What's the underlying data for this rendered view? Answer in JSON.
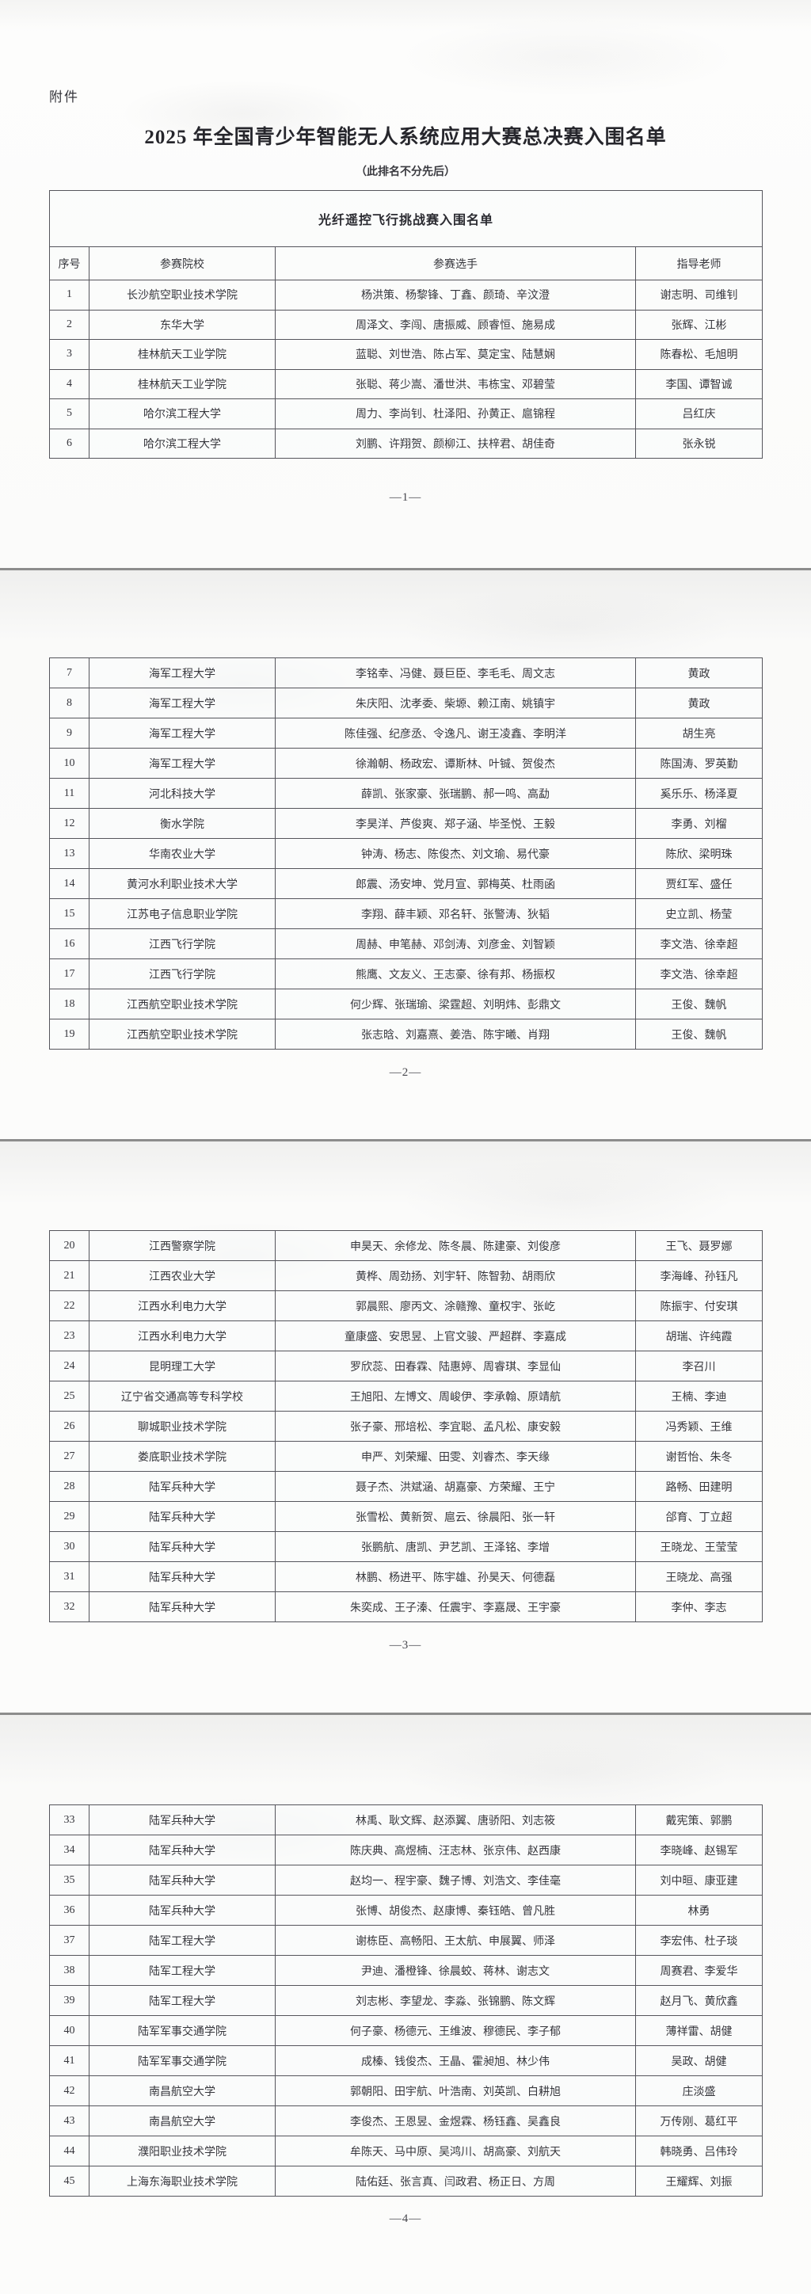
{
  "document": {
    "attachment_label": "附件",
    "title": "2025 年全国青少年智能无人系统应用大赛总决赛入围名单",
    "subtitle": "（此排名不分先后）",
    "table_title": "光纤遥控飞行挑战赛入围名单",
    "columns": [
      "序号",
      "参赛院校",
      "参赛选手",
      "指导老师"
    ],
    "colors": {
      "text": "#36363c",
      "border": "#55555c",
      "page_bg": "#fcfcfb",
      "separator": "#8c8c8c"
    },
    "pages": [
      {
        "page_number": "—1—",
        "rows": [
          [
            "1",
            "长沙航空职业技术学院",
            "杨洪策、杨黎锋、丁鑫、颜琦、辛汶澄",
            "谢志明、司维钊"
          ],
          [
            "2",
            "东华大学",
            "周泽文、李闯、唐振威、顾睿恒、施易成",
            "张辉、江彬"
          ],
          [
            "3",
            "桂林航天工业学院",
            "蓝聪、刘世浩、陈占军、莫定宝、陆慧娴",
            "陈春松、毛旭明"
          ],
          [
            "4",
            "桂林航天工业学院",
            "张聪、蒋少嵩、潘世洪、韦栋宝、邓碧莹",
            "李国、谭智诚"
          ],
          [
            "5",
            "哈尔滨工程大学",
            "周力、李尚钊、杜泽阳、孙黄正、扈锦程",
            "吕红庆"
          ],
          [
            "6",
            "哈尔滨工程大学",
            "刘鹏、许翔贺、颜柳江、扶梓君、胡佳奇",
            "张永锐"
          ]
        ]
      },
      {
        "page_number": "—2—",
        "rows": [
          [
            "7",
            "海军工程大学",
            "李铭幸、冯健、聂巨臣、李毛毛、周文志",
            "黄政"
          ],
          [
            "8",
            "海军工程大学",
            "朱庆阳、沈孝委、柴塬、赖江南、姚镇宇",
            "黄政"
          ],
          [
            "9",
            "海军工程大学",
            "陈佳强、纪彦丞、令逸凡、谢王凌鑫、李明洋",
            "胡生亮"
          ],
          [
            "10",
            "海军工程大学",
            "徐瀚朝、杨政宏、谭斯林、叶铖、贺俊杰",
            "陈国涛、罗英勤"
          ],
          [
            "11",
            "河北科技大学",
            "薛凯、张家豪、张瑞鹏、郝一鸣、高勐",
            "奚乐乐、杨泽夏"
          ],
          [
            "12",
            "衡水学院",
            "李昊洋、芦俊爽、郑子涵、毕圣悦、王毅",
            "李勇、刘榴"
          ],
          [
            "13",
            "华南农业大学",
            "钟涛、杨志、陈俊杰、刘文瑜、易代豪",
            "陈欣、梁明珠"
          ],
          [
            "14",
            "黄河水利职业技术大学",
            "郎震、汤安坤、党月宣、郭梅英、杜雨函",
            "贾红军、盛任"
          ],
          [
            "15",
            "江苏电子信息职业学院",
            "李翔、薛丰颖、邓名轩、张警涛、狄韬",
            "史立凯、杨莹"
          ],
          [
            "16",
            "江西飞行学院",
            "周赫、申笔赫、邓剑涛、刘彦金、刘智颖",
            "李文浩、徐幸超"
          ],
          [
            "17",
            "江西飞行学院",
            "熊鹰、文友义、王志豪、徐有邦、杨振权",
            "李文浩、徐幸超"
          ],
          [
            "18",
            "江西航空职业技术学院",
            "何少辉、张瑞瑜、梁霆超、刘明炜、彭鼎文",
            "王俊、魏帆"
          ],
          [
            "19",
            "江西航空职业技术学院",
            "张志晗、刘嘉熹、姜浩、陈宇曦、肖翔",
            "王俊、魏帆"
          ]
        ]
      },
      {
        "page_number": "—3—",
        "rows": [
          [
            "20",
            "江西警察学院",
            "申昊天、余修龙、陈冬晨、陈建豪、刘俊彦",
            "王飞、聂罗娜"
          ],
          [
            "21",
            "江西农业大学",
            "黄桦、周劲扬、刘宇轩、陈智勃、胡雨欣",
            "李海峰、孙钰凡"
          ],
          [
            "22",
            "江西水利电力大学",
            "郭晨熙、廖丙文、涂赣豫、童权宇、张屹",
            "陈振宇、付安琪"
          ],
          [
            "23",
            "江西水利电力大学",
            "童康盛、安思昱、上官文骏、严超群、李嘉成",
            "胡瑞、许纯霞"
          ],
          [
            "24",
            "昆明理工大学",
            "罗欣蕊、田春霖、陆惠婷、周睿琪、李显仙",
            "李召川"
          ],
          [
            "25",
            "辽宁省交通高等专科学校",
            "王旭阳、左博文、周峻伊、李承翰、原靖航",
            "王楠、李迪"
          ],
          [
            "26",
            "聊城职业技术学院",
            "张子豪、邢培松、李宜聪、孟凡松、康安毅",
            "冯秀颖、王维"
          ],
          [
            "27",
            "娄底职业技术学院",
            "申严、刘荣耀、田雯、刘睿杰、李天缘",
            "谢哲怡、朱冬"
          ],
          [
            "28",
            "陆军兵种大学",
            "聂子杰、洪斌涵、胡嘉豪、方荣耀、王宁",
            "路畅、田建明"
          ],
          [
            "29",
            "陆军兵种大学",
            "张雪松、黄新贺、扈云、徐晨阳、张一轩",
            "郃育、丁立超"
          ],
          [
            "30",
            "陆军兵种大学",
            "张鹏航、唐凯、尹艺凯、王泽铭、李增",
            "王晓龙、王莹莹"
          ],
          [
            "31",
            "陆军兵种大学",
            "林鹏、杨进平、陈宇雄、孙昊天、何德磊",
            "王晓龙、高强"
          ],
          [
            "32",
            "陆军兵种大学",
            "朱奕成、王子溱、任震宇、李嘉晟、王宇豪",
            "李仲、李志"
          ]
        ]
      },
      {
        "page_number": "—4—",
        "rows": [
          [
            "33",
            "陆军兵种大学",
            "林禹、耿文辉、赵添翼、唐骄阳、刘志筱",
            "戴宪策、郭鹏"
          ],
          [
            "34",
            "陆军兵种大学",
            "陈庆典、高煜楠、汪志林、张京伟、赵西康",
            "李晓峰、赵锡军"
          ],
          [
            "35",
            "陆军兵种大学",
            "赵均一、程宇豪、魏子博、刘浩文、李佳毫",
            "刘中晅、康亚建"
          ],
          [
            "36",
            "陆军兵种大学",
            "张博、胡俊杰、赵康博、秦钰皓、曾凡胜",
            "林勇"
          ],
          [
            "37",
            "陆军工程大学",
            "谢栋臣、高畅阳、王太航、申展翼、师泽",
            "李宏伟、杜子琰"
          ],
          [
            "38",
            "陆军工程大学",
            "尹迪、潘橙锋、徐晨蛟、蒋林、谢志文",
            "周赛君、李爱华"
          ],
          [
            "39",
            "陆军工程大学",
            "刘志彬、李望龙、李淼、张锦鹏、陈文辉",
            "赵月飞、黄欣鑫"
          ],
          [
            "40",
            "陆军军事交通学院",
            "何子豪、杨德元、王维波、穆德民、李子郁",
            "薄祥雷、胡健"
          ],
          [
            "41",
            "陆军军事交通学院",
            "成榛、钱俊杰、王晶、霍昶旭、林少伟",
            "吴政、胡健"
          ],
          [
            "42",
            "南昌航空大学",
            "郭朝阳、田宇航、叶浩南、刘英凯、白耕旭",
            "庄淡盛"
          ],
          [
            "43",
            "南昌航空大学",
            "李俊杰、王恩昱、金煜霖、杨钰鑫、吴鑫良",
            "万传刚、葛红平"
          ],
          [
            "44",
            "濮阳职业技术学院",
            "牟陈天、马中原、吴鸿川、胡高豪、刘航天",
            "韩晓勇、吕伟玲"
          ],
          [
            "45",
            "上海东海职业技术学院",
            "陆佑廷、张言真、闫政君、杨正日、方周",
            "王耀辉、刘振"
          ]
        ]
      }
    ]
  }
}
